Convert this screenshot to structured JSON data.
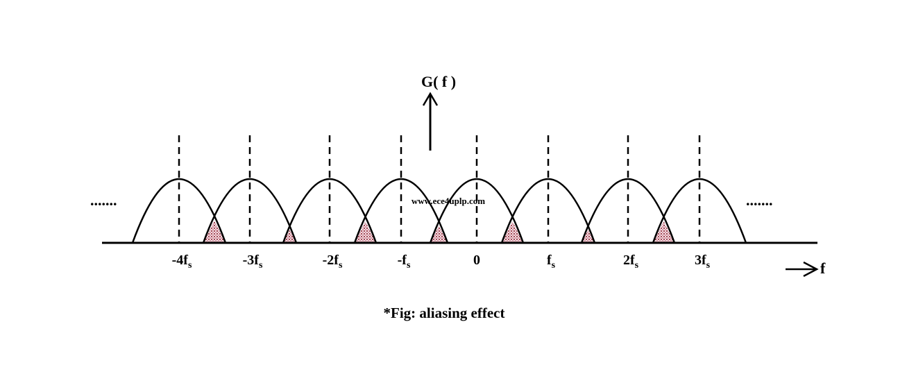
{
  "y_axis_label": "G( f )",
  "x_axis_label": "f",
  "tick_labels": [
    {
      "text": "-4f",
      "sub": "s"
    },
    {
      "text": "-3f",
      "sub": "s"
    },
    {
      "text": "-2f",
      "sub": "s"
    },
    {
      "text": "-f",
      "sub": "s"
    },
    {
      "text": "0"
    },
    {
      "text": "f",
      "sub": "s"
    },
    {
      "text": "2f",
      "sub": "s"
    },
    {
      "text": "3f",
      "sub": "s"
    }
  ],
  "left_ellipsis": ".......",
  "right_ellipsis": ".......",
  "watermark": "www.ece4uplp.com",
  "caption": "*Fig: aliasing effect"
}
